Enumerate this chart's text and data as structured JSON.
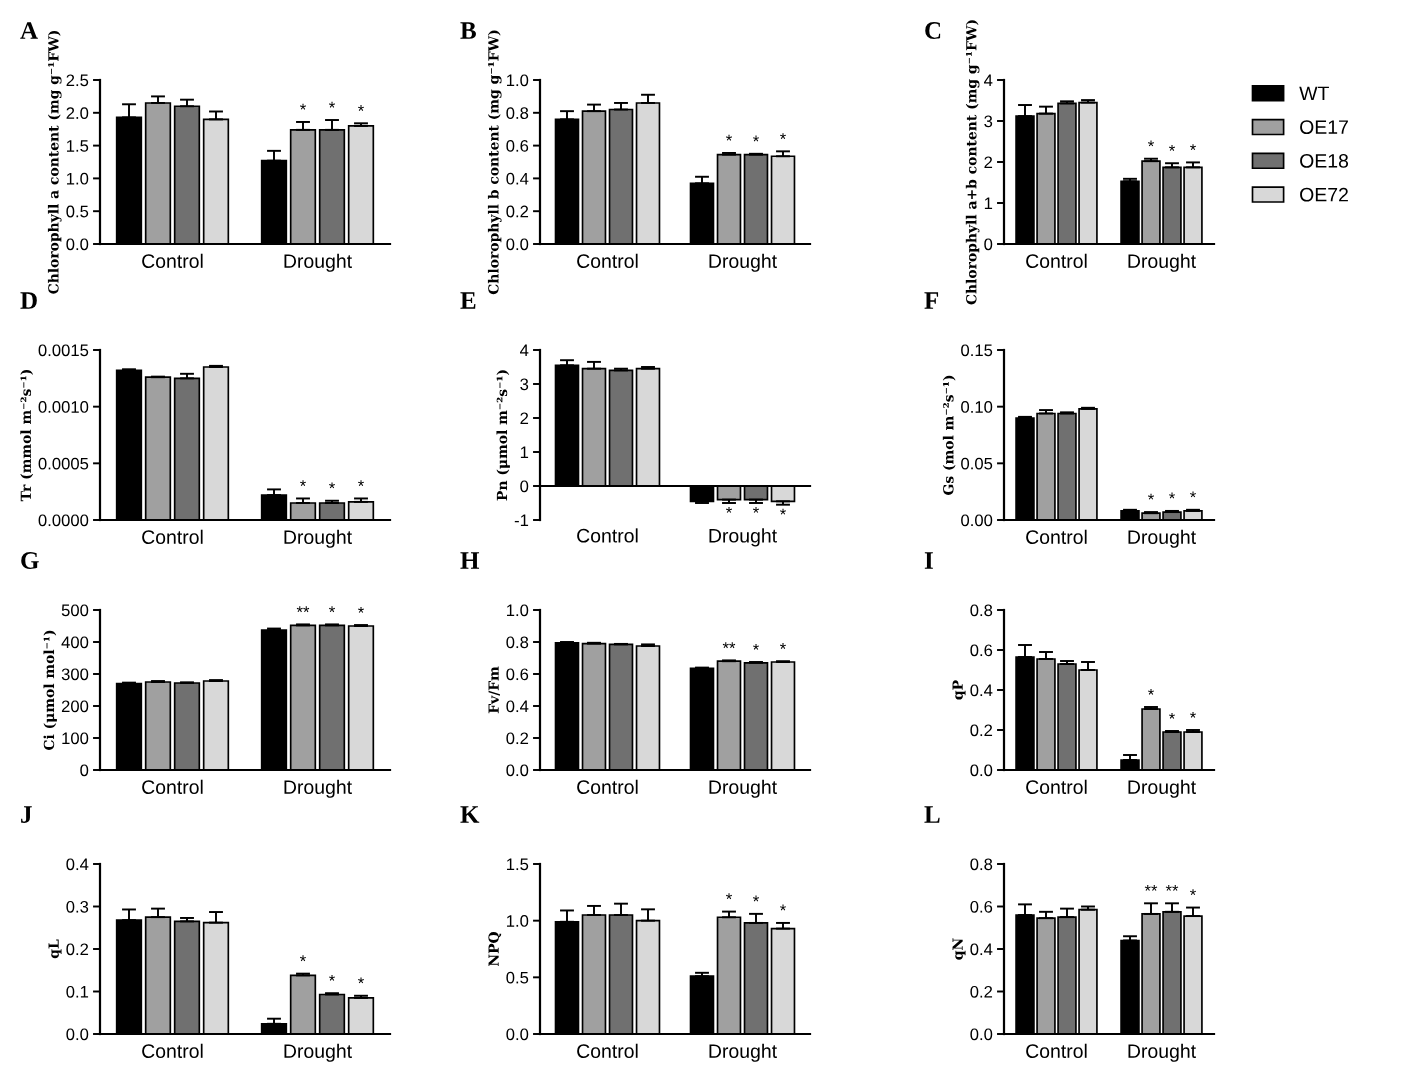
{
  "chart_data": [
    {
      "type": "bar",
      "title": "A",
      "ylabel": "Chlorophyll a content (mg g⁻¹FW)",
      "categories": [
        "Control",
        "Drought"
      ],
      "ylim": [
        0,
        2.5
      ],
      "yticks": [
        {
          "value": 0,
          "label": "0.0"
        },
        0.5,
        {
          "value": 1,
          "label": "1.0"
        },
        1.5,
        {
          "value": 2,
          "label": "2.0"
        },
        2.5
      ],
      "legend": false,
      "series": [
        {
          "color": "#000000",
          "values": [
            1.93,
            1.27
          ],
          "errors": [
            0.2,
            0.15
          ]
        },
        {
          "color": "#a0a0a0",
          "values": [
            2.15,
            1.74
          ],
          "errors": [
            0.1,
            0.12
          ],
          "value_labels": [
            null,
            "*"
          ]
        },
        {
          "color": "#707070",
          "values": [
            2.1,
            1.74
          ],
          "errors": [
            0.1,
            0.15
          ],
          "value_labels": [
            null,
            "*"
          ]
        },
        {
          "color": "#d8d8d8",
          "values": [
            1.9,
            1.8
          ],
          "errors": [
            0.12,
            0.04
          ],
          "value_labels": [
            null,
            "*"
          ]
        }
      ]
    },
    {
      "type": "bar",
      "title": "B",
      "ylabel": "Chlorophyll b content (mg g⁻¹FW)",
      "categories": [
        "Control",
        "Drought"
      ],
      "ylim": [
        0,
        1.0
      ],
      "yticks": [
        {
          "value": 0,
          "label": "0.0"
        },
        0.2,
        0.4,
        0.6,
        0.8,
        {
          "value": 1,
          "label": "1.0"
        }
      ],
      "legend": false,
      "series": [
        {
          "color": "#000000",
          "values": [
            0.76,
            0.37
          ],
          "errors": [
            0.05,
            0.04
          ]
        },
        {
          "color": "#a0a0a0",
          "values": [
            0.81,
            0.545
          ],
          "errors": [
            0.04,
            0.01
          ],
          "value_labels": [
            null,
            "*"
          ]
        },
        {
          "color": "#707070",
          "values": [
            0.82,
            0.545
          ],
          "errors": [
            0.04,
            0.005
          ],
          "value_labels": [
            null,
            "*"
          ]
        },
        {
          "color": "#d8d8d8",
          "values": [
            0.86,
            0.535
          ],
          "errors": [
            0.05,
            0.03
          ],
          "value_labels": [
            null,
            "*"
          ]
        }
      ]
    },
    {
      "type": "bar",
      "title": "C",
      "ylabel": "Chlorophyll a+b content (mg g⁻¹FW)",
      "categories": [
        "Control",
        "Drought"
      ],
      "ylim": [
        0,
        4
      ],
      "yticks": [
        0,
        1,
        2,
        3,
        4
      ],
      "legend": "right",
      "series": [
        {
          "name": "WT",
          "color": "#000000",
          "values": [
            3.12,
            1.53
          ],
          "errors": [
            0.27,
            0.06
          ]
        },
        {
          "name": "OE17",
          "color": "#a0a0a0",
          "values": [
            3.18,
            2.02
          ],
          "errors": [
            0.17,
            0.06
          ],
          "value_labels": [
            null,
            "*"
          ]
        },
        {
          "name": "OE18",
          "color": "#707070",
          "values": [
            3.43,
            1.87
          ],
          "errors": [
            0.05,
            0.1
          ],
          "value_labels": [
            null,
            "*"
          ]
        },
        {
          "name": "OE72",
          "color": "#d8d8d8",
          "values": [
            3.45,
            1.87
          ],
          "errors": [
            0.06,
            0.12
          ],
          "value_labels": [
            null,
            "*"
          ]
        }
      ]
    },
    {
      "type": "bar",
      "title": "D",
      "ylabel": "Tr (mmol m⁻²s⁻¹)",
      "categories": [
        "Control",
        "Drought"
      ],
      "ylim": [
        0,
        0.0015
      ],
      "yticks": [
        {
          "value": 0,
          "label": "0.0000"
        },
        {
          "value": 0.0005,
          "label": "0.0005"
        },
        {
          "value": 0.001,
          "label": "0.0010"
        },
        {
          "value": 0.0015,
          "label": "0.0015"
        }
      ],
      "legend": false,
      "series": [
        {
          "color": "#000000",
          "values": [
            0.00132,
            0.00022
          ],
          "errors": [
            1e-05,
            5e-05
          ]
        },
        {
          "color": "#a0a0a0",
          "values": [
            0.00126,
            0.00015
          ],
          "errors": [
            5e-06,
            4e-05
          ],
          "value_labels": [
            null,
            "*"
          ]
        },
        {
          "color": "#707070",
          "values": [
            0.00125,
            0.00015
          ],
          "errors": [
            4e-05,
            2e-05
          ],
          "value_labels": [
            null,
            "*"
          ]
        },
        {
          "color": "#d8d8d8",
          "values": [
            0.00135,
            0.00016
          ],
          "errors": [
            1e-05,
            3e-05
          ],
          "value_labels": [
            null,
            "*"
          ]
        }
      ]
    },
    {
      "type": "bar",
      "title": "E",
      "ylabel": "Pn (μmol m⁻²s⁻¹)",
      "categories": [
        "Control",
        "Drought"
      ],
      "ylim": [
        -1,
        4
      ],
      "yticks": [
        {
          "value": -1,
          "label": "-1"
        },
        0,
        1,
        2,
        3,
        4
      ],
      "legend": false,
      "series": [
        {
          "color": "#000000",
          "values": [
            3.55,
            -0.45
          ],
          "errors": [
            0.15,
            0.05
          ]
        },
        {
          "color": "#a0a0a0",
          "values": [
            3.45,
            -0.4
          ],
          "errors": [
            0.2,
            0.1
          ],
          "value_labels": [
            null,
            "*"
          ]
        },
        {
          "color": "#707070",
          "values": [
            3.4,
            -0.4
          ],
          "errors": [
            0.05,
            0.1
          ],
          "value_labels": [
            null,
            "*"
          ]
        },
        {
          "color": "#d8d8d8",
          "values": [
            3.45,
            -0.45
          ],
          "errors": [
            0.05,
            0.1
          ],
          "value_labels": [
            null,
            "*"
          ]
        }
      ]
    },
    {
      "type": "bar",
      "title": "F",
      "ylabel": "Gs (mol m⁻²s⁻¹)",
      "categories": [
        "Control",
        "Drought"
      ],
      "ylim": [
        0,
        0.15
      ],
      "yticks": [
        {
          "value": 0,
          "label": "0.00"
        },
        {
          "value": 0.05,
          "label": "0.05"
        },
        {
          "value": 0.1,
          "label": "0.10"
        },
        {
          "value": 0.15,
          "label": "0.15"
        }
      ],
      "legend": false,
      "series": [
        {
          "color": "#000000",
          "values": [
            0.09,
            0.008
          ],
          "errors": [
            0.001,
            0.001
          ]
        },
        {
          "color": "#a0a0a0",
          "values": [
            0.094,
            0.006
          ],
          "errors": [
            0.003,
            0.001
          ],
          "value_labels": [
            null,
            "*"
          ]
        },
        {
          "color": "#707070",
          "values": [
            0.094,
            0.007
          ],
          "errors": [
            0.001,
            0.001
          ],
          "value_labels": [
            null,
            "*"
          ]
        },
        {
          "color": "#d8d8d8",
          "values": [
            0.098,
            0.008
          ],
          "errors": [
            0.001,
            0.001
          ],
          "value_labels": [
            null,
            "*"
          ]
        }
      ]
    },
    {
      "type": "bar",
      "title": "G",
      "ylabel": "Ci (μmol mol⁻¹)",
      "categories": [
        "Control",
        "Drought"
      ],
      "ylim": [
        0,
        500
      ],
      "yticks": [
        0,
        100,
        200,
        300,
        400,
        500
      ],
      "legend": false,
      "series": [
        {
          "color": "#000000",
          "values": [
            270,
            437
          ],
          "errors": [
            3,
            5
          ]
        },
        {
          "color": "#a0a0a0",
          "values": [
            275,
            452
          ],
          "errors": [
            3,
            3
          ],
          "value_labels": [
            null,
            "**"
          ]
        },
        {
          "color": "#707070",
          "values": [
            272,
            452
          ],
          "errors": [
            2,
            3
          ],
          "value_labels": [
            null,
            "*"
          ]
        },
        {
          "color": "#d8d8d8",
          "values": [
            278,
            450
          ],
          "errors": [
            3,
            3
          ],
          "value_labels": [
            null,
            "*"
          ]
        }
      ]
    },
    {
      "type": "bar",
      "title": "H",
      "ylabel": "Fv/Fm",
      "categories": [
        "Control",
        "Drought"
      ],
      "ylim": [
        0,
        1.0
      ],
      "yticks": [
        {
          "value": 0,
          "label": "0.0"
        },
        0.2,
        0.4,
        0.6,
        0.8,
        {
          "value": 1,
          "label": "1.0"
        }
      ],
      "legend": false,
      "series": [
        {
          "color": "#000000",
          "values": [
            0.795,
            0.635
          ],
          "errors": [
            0.005,
            0.005
          ]
        },
        {
          "color": "#a0a0a0",
          "values": [
            0.79,
            0.68
          ],
          "errors": [
            0.005,
            0.005
          ],
          "value_labels": [
            null,
            "**"
          ]
        },
        {
          "color": "#707070",
          "values": [
            0.785,
            0.67
          ],
          "errors": [
            0.003,
            0.005
          ],
          "value_labels": [
            null,
            "*"
          ]
        },
        {
          "color": "#d8d8d8",
          "values": [
            0.775,
            0.675
          ],
          "errors": [
            0.01,
            0.005
          ],
          "value_labels": [
            null,
            "*"
          ]
        }
      ]
    },
    {
      "type": "bar",
      "title": "I",
      "ylabel": "qP",
      "categories": [
        "Control",
        "Drought"
      ],
      "ylim": [
        0,
        0.8
      ],
      "yticks": [
        {
          "value": 0,
          "label": "0.0"
        },
        0.2,
        0.4,
        0.6,
        0.8
      ],
      "legend": false,
      "series": [
        {
          "color": "#000000",
          "values": [
            0.565,
            0.05
          ],
          "errors": [
            0.06,
            0.025
          ]
        },
        {
          "color": "#a0a0a0",
          "values": [
            0.555,
            0.305
          ],
          "errors": [
            0.035,
            0.01
          ],
          "value_labels": [
            null,
            "*"
          ]
        },
        {
          "color": "#707070",
          "values": [
            0.53,
            0.19
          ],
          "errors": [
            0.015,
            0.005
          ],
          "value_labels": [
            null,
            "*"
          ]
        },
        {
          "color": "#d8d8d8",
          "values": [
            0.5,
            0.19
          ],
          "errors": [
            0.04,
            0.01
          ],
          "value_labels": [
            null,
            "*"
          ]
        }
      ]
    },
    {
      "type": "bar",
      "title": "J",
      "ylabel": "qL",
      "categories": [
        "Control",
        "Drought"
      ],
      "ylim": [
        0,
        0.4
      ],
      "yticks": [
        {
          "value": 0,
          "label": "0.0"
        },
        0.1,
        0.2,
        0.3,
        0.4
      ],
      "legend": false,
      "series": [
        {
          "color": "#000000",
          "values": [
            0.268,
            0.024
          ],
          "errors": [
            0.025,
            0.012
          ]
        },
        {
          "color": "#a0a0a0",
          "values": [
            0.275,
            0.138
          ],
          "errors": [
            0.02,
            0.004
          ],
          "value_labels": [
            null,
            "*"
          ]
        },
        {
          "color": "#707070",
          "values": [
            0.265,
            0.093
          ],
          "errors": [
            0.008,
            0.003
          ],
          "value_labels": [
            null,
            "*"
          ]
        },
        {
          "color": "#d8d8d8",
          "values": [
            0.262,
            0.085
          ],
          "errors": [
            0.025,
            0.005
          ],
          "value_labels": [
            null,
            "*"
          ]
        }
      ]
    },
    {
      "type": "bar",
      "title": "K",
      "ylabel": "NPQ",
      "categories": [
        "Control",
        "Drought"
      ],
      "ylim": [
        0,
        1.5
      ],
      "yticks": [
        {
          "value": 0,
          "label": "0.0"
        },
        0.5,
        {
          "value": 1,
          "label": "1.0"
        },
        1.5
      ],
      "legend": false,
      "series": [
        {
          "color": "#000000",
          "values": [
            0.99,
            0.51
          ],
          "errors": [
            0.1,
            0.03
          ]
        },
        {
          "color": "#a0a0a0",
          "values": [
            1.05,
            1.03
          ],
          "errors": [
            0.08,
            0.05
          ],
          "value_labels": [
            null,
            "*"
          ]
        },
        {
          "color": "#707070",
          "values": [
            1.05,
            0.98
          ],
          "errors": [
            0.1,
            0.08
          ],
          "value_labels": [
            null,
            "*"
          ]
        },
        {
          "color": "#d8d8d8",
          "values": [
            1.0,
            0.93
          ],
          "errors": [
            0.1,
            0.05
          ],
          "value_labels": [
            null,
            "*"
          ]
        }
      ]
    },
    {
      "type": "bar",
      "title": "L",
      "ylabel": "qN",
      "categories": [
        "Control",
        "Drought"
      ],
      "ylim": [
        0,
        0.8
      ],
      "yticks": [
        {
          "value": 0,
          "label": "0.0"
        },
        0.2,
        0.4,
        0.6,
        0.8
      ],
      "legend": false,
      "series": [
        {
          "color": "#000000",
          "values": [
            0.56,
            0.44
          ],
          "errors": [
            0.05,
            0.02
          ]
        },
        {
          "color": "#a0a0a0",
          "values": [
            0.545,
            0.565
          ],
          "errors": [
            0.03,
            0.05
          ],
          "value_labels": [
            null,
            "**"
          ]
        },
        {
          "color": "#707070",
          "values": [
            0.55,
            0.575
          ],
          "errors": [
            0.04,
            0.04
          ],
          "value_labels": [
            null,
            "**"
          ]
        },
        {
          "color": "#d8d8d8",
          "values": [
            0.585,
            0.555
          ],
          "errors": [
            0.015,
            0.04
          ],
          "value_labels": [
            null,
            "*"
          ]
        }
      ]
    }
  ]
}
